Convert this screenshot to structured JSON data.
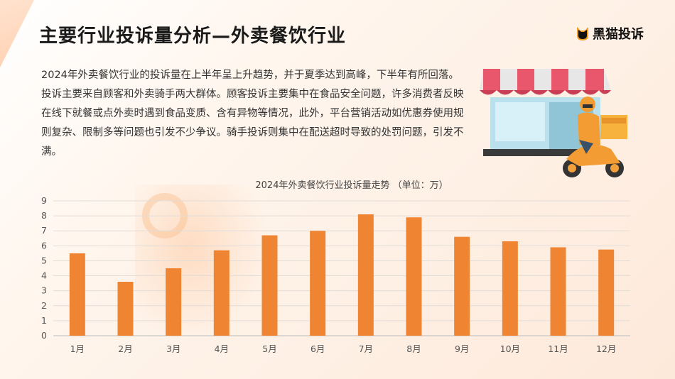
{
  "title": "主要行业投诉量分析—外卖餐饮行业",
  "brand": {
    "name": "黑猫投诉",
    "icon": "black-cat-logo-icon"
  },
  "description": "2024年外卖餐饮行业的投诉量在上半年呈上升趋势，并于夏季达到高峰，下半年有所回落。投诉主要来自顾客和外卖骑手两大群体。顾客投诉主要集中在食品安全问题，许多消费者反映在线下就餐或点外卖时遇到食品变质、含有异物等情况，此外，平台营销活动如优惠券使用规则复杂、限制多等问题也引发不少争议。骑手投诉则集中在配送超时导致的处罚问题，引发不满。",
  "illustration": "storefront-with-delivery-rider-icon",
  "colors": {
    "bar": "#ef8532",
    "accent": "#ef8532"
  },
  "chart_data": {
    "type": "bar",
    "title": "2024年外卖餐饮行业投诉量走势 （单位：万）",
    "categories": [
      "1月",
      "2月",
      "3月",
      "4月",
      "5月",
      "6月",
      "7月",
      "8月",
      "9月",
      "10月",
      "11月",
      "12月"
    ],
    "values": [
      5.5,
      3.6,
      4.5,
      5.7,
      6.7,
      7.0,
      8.1,
      7.9,
      6.6,
      6.3,
      5.9,
      5.75
    ],
    "yticks": [
      "0",
      "1",
      "2",
      "3",
      "4",
      "5",
      "6",
      "7",
      "8",
      "9"
    ],
    "ylim": [
      0,
      9
    ],
    "grid": true
  }
}
